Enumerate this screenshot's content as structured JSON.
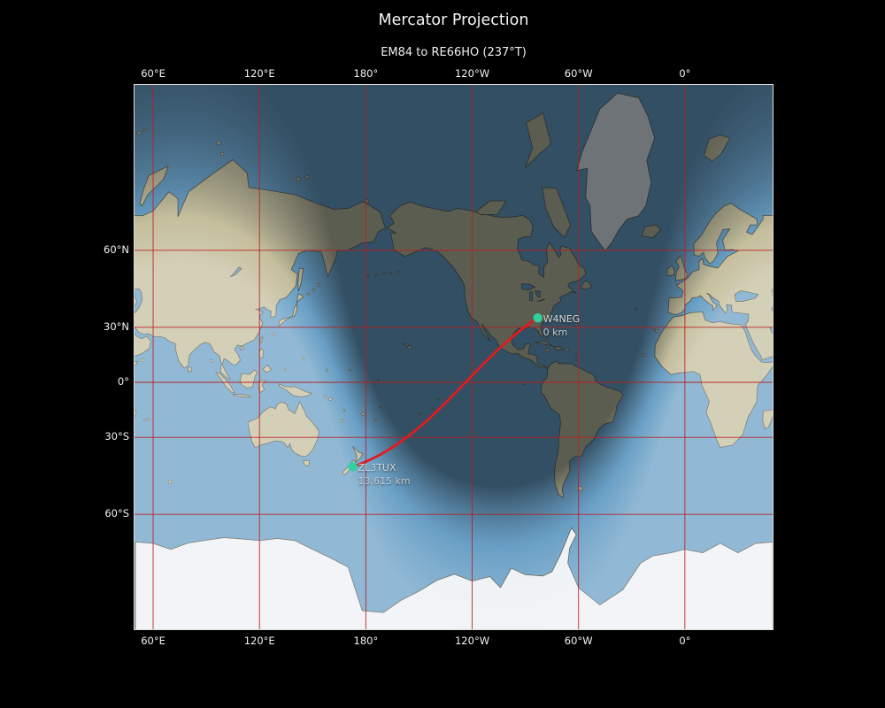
{
  "figure": {
    "title": "Mercator Projection",
    "subtitle": "EM84 to RE66HO (237°T)"
  },
  "route": {
    "from_grid": "EM84",
    "to_grid": "RE66HO",
    "bearing": "237°T"
  },
  "axes": {
    "x_ticks": [
      {
        "label": "60°E",
        "lon": 60
      },
      {
        "label": "120°E",
        "lon": 120
      },
      {
        "label": "180°",
        "lon": 180
      },
      {
        "label": "120°W",
        "lon": 240
      },
      {
        "label": "60°W",
        "lon": 300
      },
      {
        "label": "0°",
        "lon": 360
      }
    ],
    "y_ticks": [
      {
        "label": "60°N",
        "lat": 60
      },
      {
        "label": "30°N",
        "lat": 30
      },
      {
        "label": "0°",
        "lat": 0
      },
      {
        "label": "30°S",
        "lat": -30
      },
      {
        "label": "60°S",
        "lat": -60
      }
    ]
  },
  "markers": [
    {
      "callsign": "W4NEG",
      "distance": "0 km"
    },
    {
      "callsign": "ZL3TUX",
      "distance": "13,615 km"
    }
  ],
  "colors": {
    "background": "#000000",
    "grid": "#b42222",
    "path": "#e11b1e",
    "marker": "#2dd2a0",
    "ocean_day": "#8cb3cf",
    "ocean_night": "#31495c",
    "land_day": "#cbc5a8",
    "land_night": "#57584b",
    "ice": "#edf1f4"
  }
}
